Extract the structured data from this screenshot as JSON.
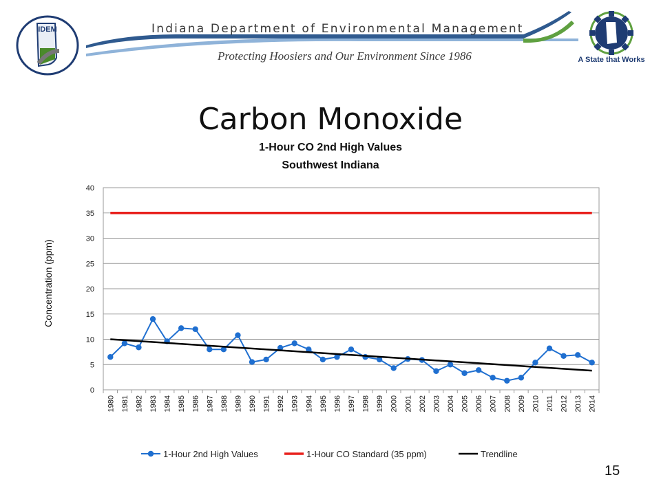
{
  "header": {
    "agency": "Indiana Department of Environmental Management",
    "tagline": "Protecting Hoosiers and Our Environment Since 1986",
    "idem_logo_text": "IDEM",
    "state_slogan": "A State that Works"
  },
  "slide": {
    "title": "Carbon Monoxide",
    "page_number": "15"
  },
  "colors": {
    "series": "#1f6fd0",
    "standard": "#e8201c",
    "trend": "#000000",
    "brand_green": "#4a8a2a",
    "brand_blue": "#1f3c73"
  },
  "chart_data": {
    "type": "line",
    "title": "1-Hour CO 2nd High Values",
    "subtitle": "Southwest Indiana",
    "xlabel": "",
    "ylabel": "Concentration (ppm)",
    "ylim": [
      0,
      40
    ],
    "yticks": [
      0,
      5,
      10,
      15,
      20,
      25,
      30,
      35,
      40
    ],
    "grid": true,
    "legend_position": "bottom",
    "x": [
      "1980",
      "1981",
      "1982",
      "1983",
      "1984",
      "1985",
      "1986",
      "1987",
      "1988",
      "1989",
      "1990",
      "1991",
      "1992",
      "1993",
      "1994",
      "1995",
      "1996",
      "1997",
      "1998",
      "1999",
      "2000",
      "2001",
      "2002",
      "2003",
      "2004",
      "2005",
      "2006",
      "2007",
      "2008",
      "2009",
      "2010",
      "2011",
      "2012",
      "2013",
      "2014"
    ],
    "series": [
      {
        "name": "1-Hour 2nd High Values",
        "style": "line-marker",
        "values": [
          6.5,
          9.2,
          8.4,
          14.0,
          9.6,
          12.2,
          12.0,
          8.0,
          8.0,
          10.8,
          5.5,
          6.0,
          8.3,
          9.2,
          8.0,
          6.0,
          6.5,
          8.0,
          6.5,
          6.0,
          4.3,
          6.1,
          5.9,
          3.7,
          5.0,
          3.3,
          3.9,
          2.4,
          1.8,
          2.4,
          5.4,
          8.2,
          6.7,
          6.9,
          5.4
        ]
      },
      {
        "name": "1-Hour CO Standard (35 ppm)",
        "style": "line-thick",
        "values": [
          35,
          35,
          35,
          35,
          35,
          35,
          35,
          35,
          35,
          35,
          35,
          35,
          35,
          35,
          35,
          35,
          35,
          35,
          35,
          35,
          35,
          35,
          35,
          35,
          35,
          35,
          35,
          35,
          35,
          35,
          35,
          35,
          35,
          35,
          35
        ]
      },
      {
        "name": "Trendline",
        "style": "line",
        "from": 10.0,
        "to": 3.8
      }
    ]
  }
}
